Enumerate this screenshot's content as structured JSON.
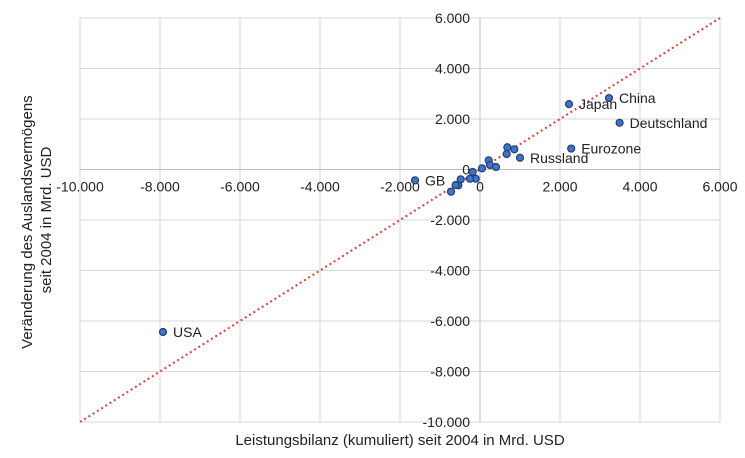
{
  "chart_data": {
    "type": "scatter",
    "xlabel": "Leistungsbilanz (kumuliert) seit 2004 in Mrd. USD",
    "ylabel_lines": [
      "Veränderung des Auslandsvermögens",
      "seit 2004 in Mrd. USD"
    ],
    "xlim": [
      -10000,
      6000
    ],
    "ylim": [
      -10000,
      6000
    ],
    "xticks": [
      -10000,
      -8000,
      -6000,
      -4000,
      -2000,
      0,
      2000,
      4000,
      6000
    ],
    "xtick_labels": [
      "-10.000",
      "-8.000",
      "-6.000",
      "-4.000",
      "-2.000",
      "0",
      "2.000",
      "4.000",
      "6.000"
    ],
    "yticks": [
      -10000,
      -8000,
      -6000,
      -4000,
      -2000,
      0,
      2000,
      4000,
      6000
    ],
    "ytick_labels": [
      "-10.000",
      "-8.000",
      "-6.000",
      "-4.000",
      "-2.000",
      "0",
      "2.000",
      "4.000",
      "6.000"
    ],
    "grid": true,
    "reference_line": {
      "name": "45-degree line",
      "from": [
        -10000,
        -10000
      ],
      "to": [
        6000,
        6000
      ],
      "color": "#d9413a"
    },
    "point_color": "#4472c4",
    "points": [
      {
        "label": "USA",
        "x": -7925,
        "y": -6435
      },
      {
        "label": "GB",
        "x": -1625,
        "y": -430
      },
      {
        "label": "Japan",
        "x": 2225,
        "y": 2590
      },
      {
        "label": "China",
        "x": 3225,
        "y": 2830
      },
      {
        "label": "Deutschland",
        "x": 3490,
        "y": 1850
      },
      {
        "label": "Eurozone",
        "x": 2280,
        "y": 830
      },
      {
        "label": "Russland",
        "x": 1000,
        "y": 465
      },
      {
        "label": "",
        "x": 683,
        "y": 880
      },
      {
        "label": "",
        "x": 858,
        "y": 800
      },
      {
        "label": "",
        "x": 667,
        "y": 614
      },
      {
        "label": "",
        "x": 217,
        "y": 364
      },
      {
        "label": "",
        "x": 250,
        "y": 178
      },
      {
        "label": "",
        "x": 400,
        "y": 100
      },
      {
        "label": "",
        "x": 50,
        "y": 47
      },
      {
        "label": "",
        "x": -183,
        "y": -99
      },
      {
        "label": "",
        "x": -108,
        "y": -364
      },
      {
        "label": "",
        "x": -250,
        "y": -364
      },
      {
        "label": "",
        "x": -483,
        "y": -388
      },
      {
        "label": "",
        "x": -542,
        "y": -626
      },
      {
        "label": "",
        "x": -608,
        "y": -614
      },
      {
        "label": "",
        "x": -725,
        "y": -879
      }
    ]
  }
}
